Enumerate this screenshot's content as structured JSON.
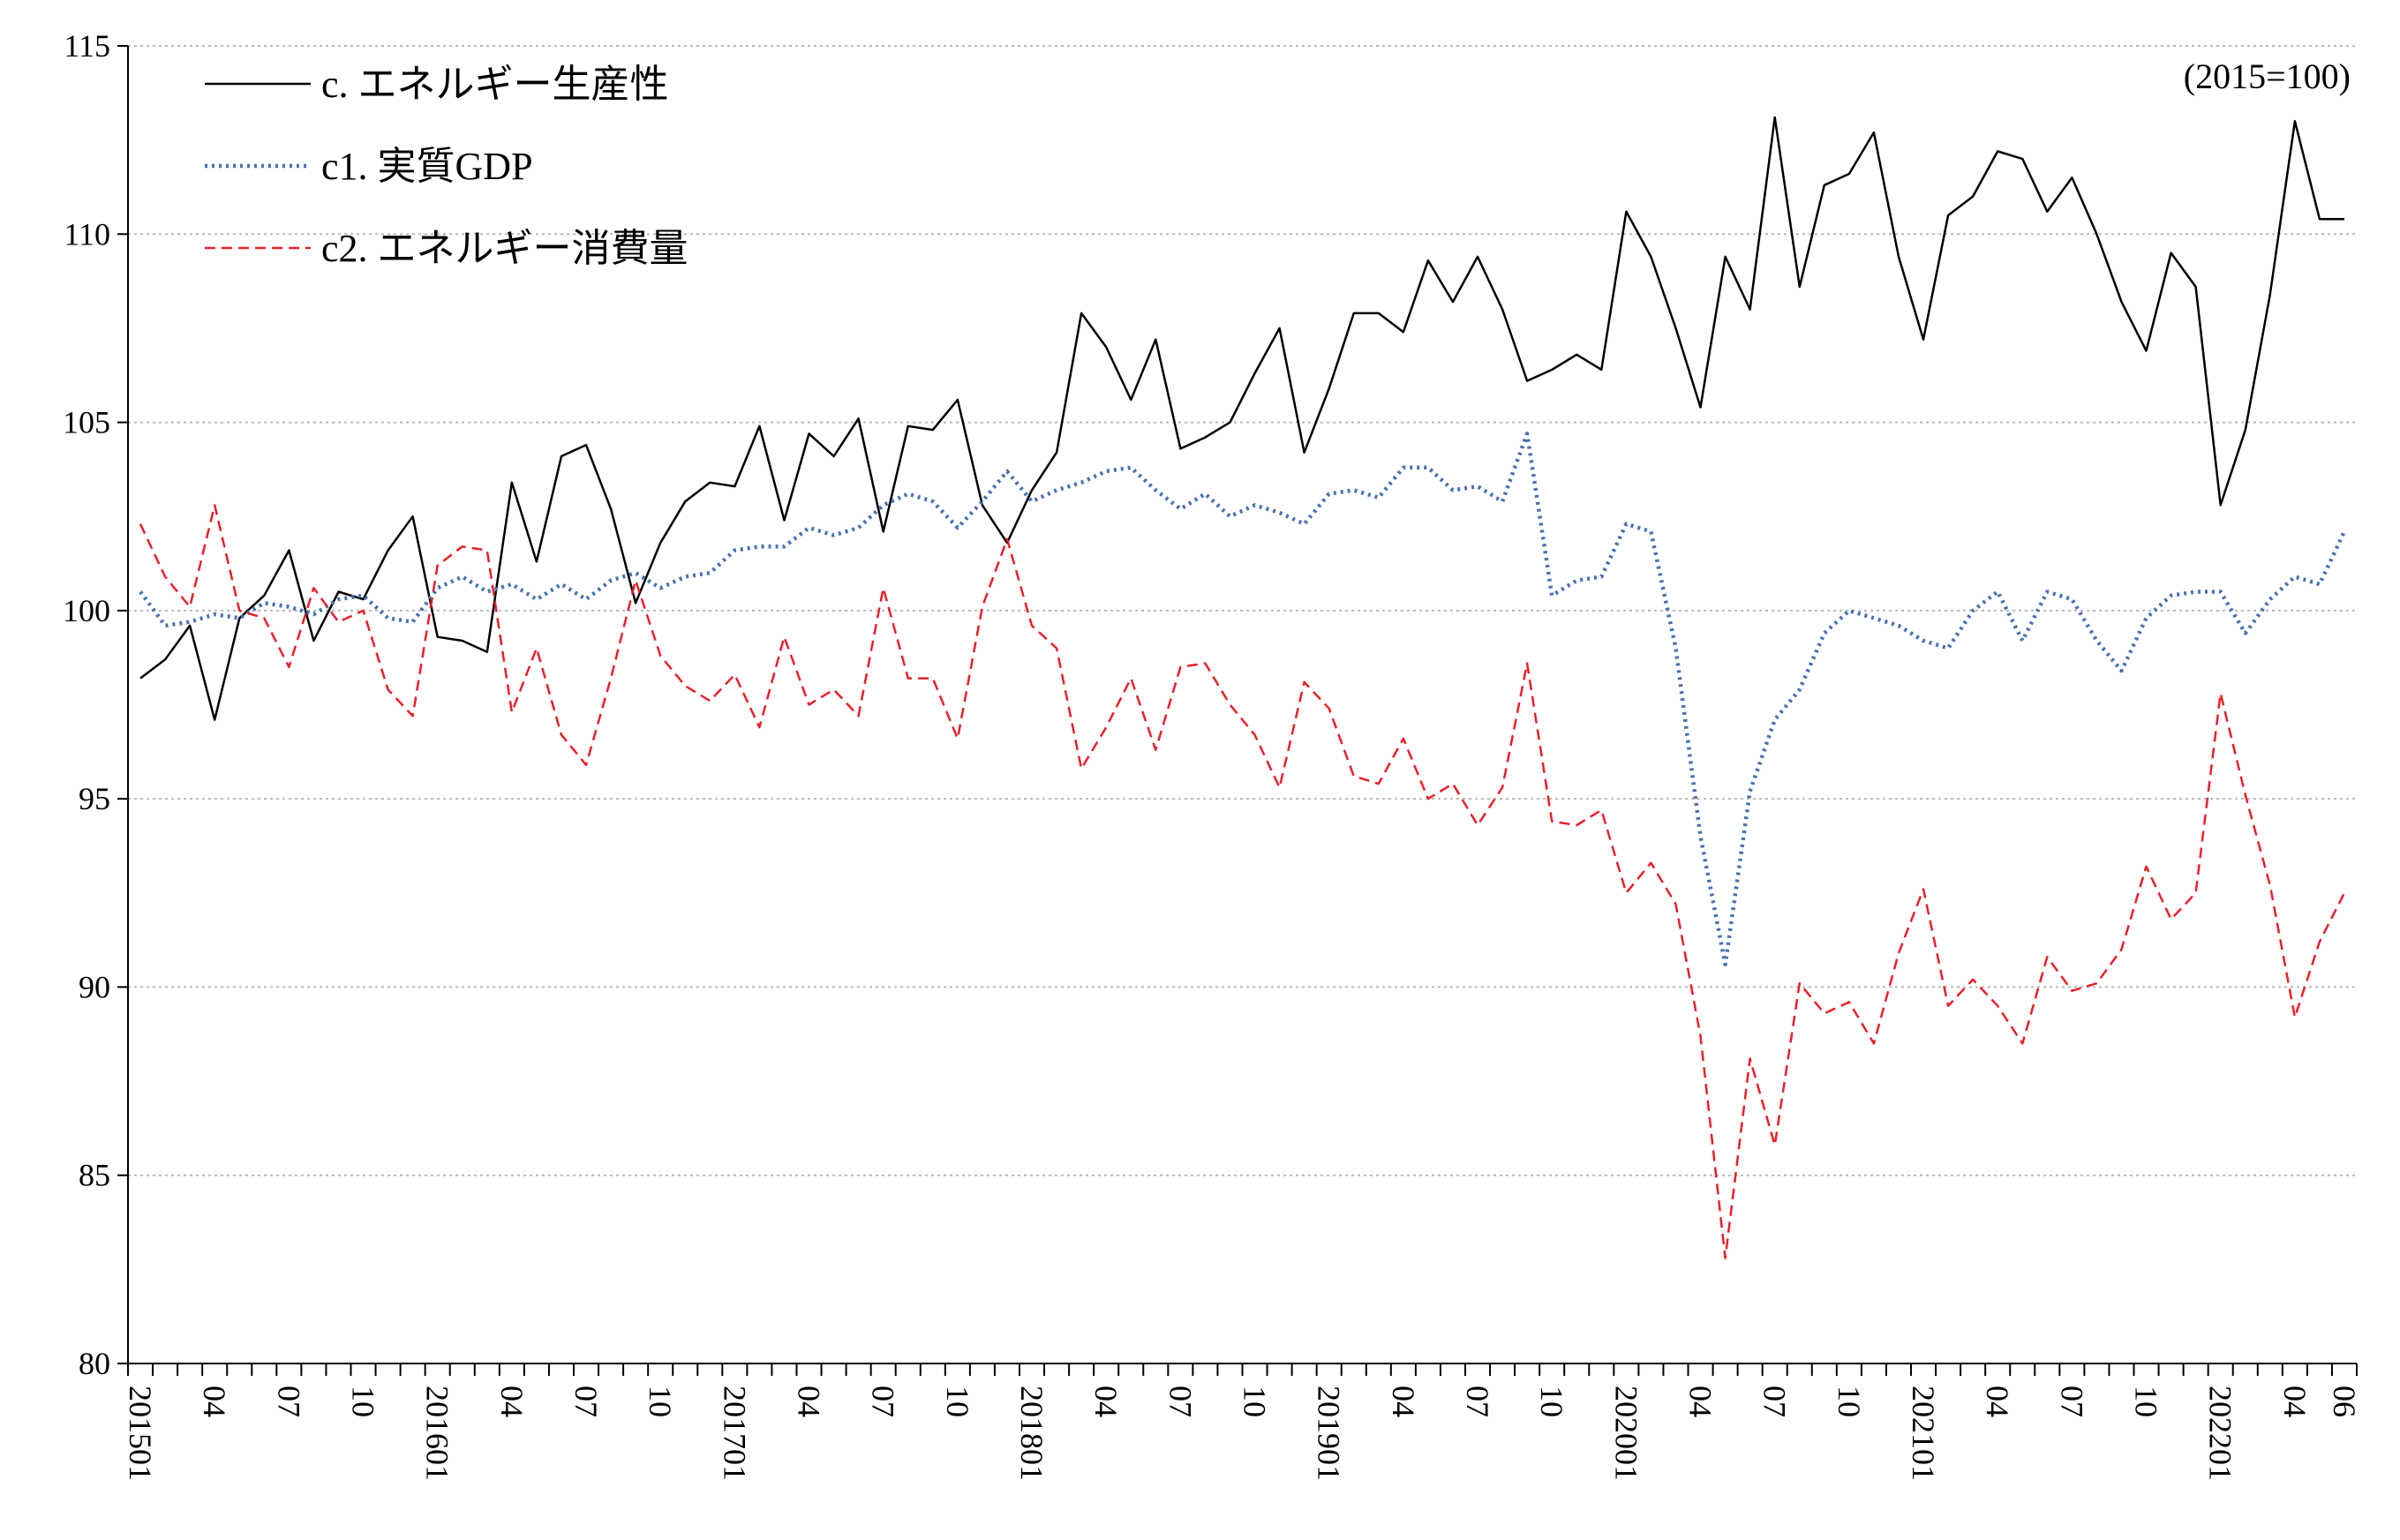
{
  "chart_data": {
    "type": "line",
    "unit_note": "(2015=100)",
    "ylim": [
      80,
      115
    ],
    "y_ticks": [
      80,
      85,
      90,
      95,
      100,
      105,
      110,
      115
    ],
    "grid": "horizontal dotted",
    "legend_position": "top-left",
    "x": [
      "201501",
      "201502",
      "201503",
      "201504",
      "201505",
      "201506",
      "201507",
      "201508",
      "201509",
      "201510",
      "201511",
      "201512",
      "201601",
      "201602",
      "201603",
      "201604",
      "201605",
      "201606",
      "201607",
      "201608",
      "201609",
      "201610",
      "201611",
      "201612",
      "201701",
      "201702",
      "201703",
      "201704",
      "201705",
      "201706",
      "201707",
      "201708",
      "201709",
      "201710",
      "201711",
      "201712",
      "201801",
      "201802",
      "201803",
      "201804",
      "201805",
      "201806",
      "201807",
      "201808",
      "201809",
      "201810",
      "201811",
      "201812",
      "201901",
      "201902",
      "201903",
      "201904",
      "201905",
      "201906",
      "201907",
      "201908",
      "201909",
      "201910",
      "201911",
      "201912",
      "202001",
      "202002",
      "202003",
      "202004",
      "202005",
      "202006",
      "202007",
      "202008",
      "202009",
      "202010",
      "202011",
      "202012",
      "202101",
      "202102",
      "202103",
      "202104",
      "202105",
      "202106",
      "202107",
      "202108",
      "202109",
      "202110",
      "202111",
      "202112",
      "202201",
      "202202",
      "202203",
      "202204",
      "202205",
      "202206"
    ],
    "x_tick_labels": [
      "201501",
      "",
      "",
      "04",
      "",
      "",
      "07",
      "",
      "",
      "10",
      "",
      "",
      "201601",
      "",
      "",
      "04",
      "",
      "",
      "07",
      "",
      "",
      "10",
      "",
      "",
      "201701",
      "",
      "",
      "04",
      "",
      "",
      "07",
      "",
      "",
      "10",
      "",
      "",
      "201801",
      "",
      "",
      "04",
      "",
      "",
      "07",
      "",
      "",
      "10",
      "",
      "",
      "201901",
      "",
      "",
      "04",
      "",
      "",
      "07",
      "",
      "",
      "10",
      "",
      "",
      "202001",
      "",
      "",
      "04",
      "",
      "",
      "07",
      "",
      "",
      "10",
      "",
      "",
      "202101",
      "",
      "",
      "04",
      "",
      "",
      "07",
      "",
      "",
      "10",
      "",
      "",
      "202201",
      "",
      "",
      "04",
      "",
      "06"
    ],
    "series": [
      {
        "name": "c. エネルギー生産性",
        "color": "#000000",
        "style": "solid",
        "values": [
          98.2,
          98.7,
          99.6,
          97.1,
          99.8,
          100.4,
          101.6,
          99.2,
          100.5,
          100.3,
          101.6,
          102.5,
          99.3,
          99.2,
          98.9,
          103.4,
          101.3,
          104.1,
          104.4,
          102.7,
          100.2,
          101.8,
          102.9,
          103.4,
          103.3,
          104.9,
          102.4,
          104.7,
          104.1,
          105.1,
          102.1,
          104.9,
          104.8,
          105.6,
          102.8,
          101.8,
          103.2,
          104.2,
          107.9,
          107.0,
          105.6,
          107.2,
          104.3,
          104.6,
          105.0,
          106.3,
          107.5,
          104.2,
          105.9,
          107.9,
          107.9,
          107.4,
          109.3,
          108.2,
          109.4,
          108.0,
          106.1,
          106.4,
          106.8,
          106.4,
          110.6,
          109.4,
          107.5,
          105.4,
          109.4,
          108.0,
          113.1,
          108.6,
          111.3,
          111.6,
          112.7,
          109.4,
          107.2,
          110.5,
          111.0,
          112.2,
          112.0,
          110.6,
          111.5,
          110.0,
          108.2,
          106.9,
          109.5,
          108.6,
          102.8,
          104.8,
          108.4,
          113.0,
          110.4,
          110.4
        ]
      },
      {
        "name": "c1. 実質GDP",
        "color": "#4a72b0",
        "style": "dotted",
        "values": [
          100.5,
          99.6,
          99.7,
          99.9,
          99.8,
          100.2,
          100.1,
          99.9,
          100.3,
          100.4,
          99.8,
          99.7,
          100.6,
          100.9,
          100.5,
          100.7,
          100.3,
          100.7,
          100.3,
          100.8,
          101.0,
          100.6,
          100.9,
          101.0,
          101.6,
          101.7,
          101.7,
          102.2,
          102.0,
          102.2,
          102.8,
          103.1,
          102.9,
          102.2,
          102.9,
          103.7,
          102.9,
          103.2,
          103.4,
          103.7,
          103.8,
          103.2,
          102.7,
          103.1,
          102.5,
          102.8,
          102.6,
          102.3,
          103.1,
          103.2,
          103.0,
          103.8,
          103.8,
          103.2,
          103.3,
          102.9,
          104.7,
          100.4,
          100.8,
          100.9,
          102.3,
          102.1,
          99.0,
          94.0,
          90.6,
          95.2,
          97.1,
          97.9,
          99.4,
          100.0,
          99.8,
          99.6,
          99.2,
          99.0,
          100.0,
          100.5,
          99.2,
          100.5,
          100.3,
          99.2,
          98.4,
          99.8,
          100.4,
          100.5,
          100.5,
          99.4,
          100.3,
          100.9,
          100.7,
          102.1
        ]
      },
      {
        "name": "c2. エネルギー消費量",
        "color": "#e8202a",
        "style": "dashed",
        "values": [
          102.3,
          100.9,
          100.1,
          102.8,
          100.0,
          99.8,
          98.5,
          100.6,
          99.7,
          100.0,
          97.9,
          97.2,
          101.2,
          101.7,
          101.6,
          97.3,
          99.0,
          96.7,
          95.9,
          98.2,
          100.8,
          98.8,
          98.0,
          97.6,
          98.3,
          96.9,
          99.3,
          97.5,
          97.9,
          97.2,
          100.6,
          98.2,
          98.2,
          96.6,
          100.1,
          101.9,
          99.6,
          99.0,
          95.8,
          96.9,
          98.2,
          96.3,
          98.5,
          98.6,
          97.5,
          96.7,
          95.3,
          98.1,
          97.4,
          95.6,
          95.4,
          96.6,
          95.0,
          95.4,
          94.3,
          95.3,
          98.6,
          94.4,
          94.3,
          94.7,
          92.5,
          93.3,
          92.2,
          88.7,
          82.8,
          88.1,
          85.8,
          90.1,
          89.3,
          89.6,
          88.5,
          90.9,
          92.6,
          89.5,
          90.2,
          89.5,
          88.5,
          90.8,
          89.9,
          90.1,
          91.0,
          93.2,
          91.8,
          92.5,
          97.8,
          95.1,
          92.7,
          89.2,
          91.2,
          92.5
        ]
      }
    ]
  }
}
